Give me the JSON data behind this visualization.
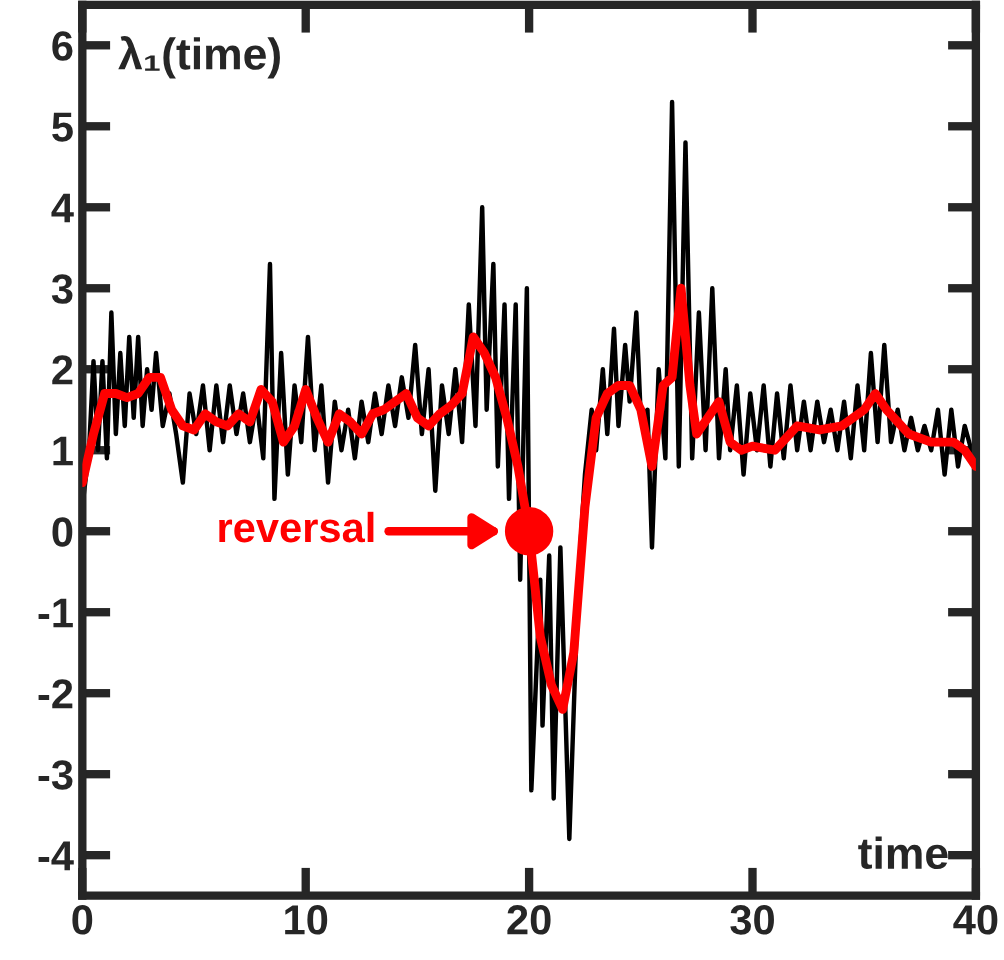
{
  "chart_data": {
    "type": "line",
    "xlabel": "time",
    "ylabel": "λ₁(time)",
    "xlim": [
      0,
      40
    ],
    "xticks": [
      0,
      10,
      20,
      30,
      40
    ],
    "ylim": [
      -4.5,
      6.5
    ],
    "yticks": [
      -4,
      -3,
      -2,
      -1,
      0,
      1,
      2,
      3,
      4,
      5,
      6
    ],
    "grid": false,
    "legend": false,
    "marker": "none",
    "line_style": "solid",
    "series": [
      {
        "color": "#000000",
        "x": [
          0,
          0.3,
          0.5,
          0.7,
          0.9,
          1.1,
          1.3,
          1.5,
          1.7,
          1.9,
          2.1,
          2.3,
          2.5,
          2.7,
          2.9,
          3.1,
          3.3,
          3.6,
          3.9,
          4.2,
          4.5,
          4.8,
          5.1,
          5.4,
          5.7,
          6.0,
          6.3,
          6.6,
          6.9,
          7.2,
          7.5,
          7.8,
          8.1,
          8.4,
          8.6,
          8.9,
          9.2,
          9.5,
          9.8,
          10.1,
          10.4,
          10.7,
          11.0,
          11.3,
          11.6,
          11.9,
          12.2,
          12.5,
          12.8,
          13.1,
          13.4,
          13.7,
          14.0,
          14.3,
          14.6,
          14.9,
          15.2,
          15.5,
          15.8,
          16.1,
          16.4,
          16.7,
          17.0,
          17.3,
          17.6,
          17.9,
          18.1,
          18.4,
          18.6,
          18.9,
          19.1,
          19.4,
          19.6,
          19.9,
          20.1,
          20.5,
          20.6,
          20.9,
          21.1,
          21.4,
          21.8,
          22.2,
          22.5,
          22.8,
          23.0,
          23.3,
          23.5,
          23.8,
          24.0,
          24.3,
          24.5,
          24.8,
          25.0,
          25.3,
          25.5,
          25.8,
          26.1,
          26.4,
          26.7,
          27.0,
          27.3,
          27.6,
          27.9,
          28.2,
          28.5,
          28.8,
          29.0,
          29.3,
          29.6,
          29.9,
          30.2,
          30.5,
          30.8,
          31.1,
          31.4,
          31.7,
          32.0,
          32.3,
          32.6,
          32.9,
          33.2,
          33.5,
          33.8,
          34.1,
          34.4,
          34.7,
          35.0,
          35.3,
          35.6,
          35.9,
          36.2,
          36.5,
          36.8,
          37.1,
          37.4,
          37.7,
          38.0,
          38.3,
          38.6,
          38.9,
          39.2,
          39.5,
          39.8,
          40.0
        ],
        "values": [
          0.3,
          1.0,
          2.1,
          1.0,
          2.1,
          0.9,
          2.7,
          1.2,
          2.2,
          1.3,
          2.4,
          1.4,
          2.4,
          1.3,
          2.0,
          1.5,
          2.2,
          1.3,
          1.7,
          1.2,
          0.6,
          1.7,
          1.2,
          1.8,
          1.0,
          1.8,
          1.1,
          1.8,
          1.2,
          1.7,
          1.1,
          1.6,
          0.9,
          3.3,
          0.4,
          2.2,
          0.7,
          1.8,
          1.1,
          2.4,
          1.0,
          1.8,
          0.6,
          1.6,
          1.0,
          1.5,
          0.9,
          1.6,
          1.1,
          1.7,
          1.2,
          1.8,
          1.3,
          1.9,
          1.4,
          2.3,
          1.2,
          2.0,
          0.5,
          1.8,
          1.2,
          2.0,
          1.1,
          2.8,
          1.3,
          4.0,
          1.5,
          3.3,
          0.8,
          2.8,
          0.4,
          2.8,
          -0.6,
          3.0,
          -3.2,
          -0.6,
          -2.4,
          -0.3,
          -3.3,
          -0.2,
          -3.8,
          -0.6,
          0.7,
          1.5,
          1.0,
          2.0,
          1.2,
          2.5,
          1.3,
          2.3,
          1.6,
          2.7,
          1.4,
          1.5,
          -0.2,
          2.0,
          0.9,
          5.3,
          0.8,
          4.8,
          0.9,
          2.7,
          1.0,
          3.0,
          0.9,
          2.0,
          1.0,
          1.8,
          0.7,
          1.7,
          1.0,
          1.8,
          0.8,
          1.7,
          0.9,
          1.8,
          1.0,
          1.6,
          1.0,
          1.6,
          1.1,
          1.5,
          1.0,
          1.6,
          0.9,
          1.8,
          1.0,
          2.2,
          1.1,
          2.3,
          1.1,
          1.5,
          1.0,
          1.4,
          1.0,
          1.3,
          1.0,
          1.5,
          0.7,
          1.5,
          0.8,
          1.3,
          1.0,
          1.1
        ]
      },
      {
        "color": "#ff0000",
        "x": [
          0,
          0.5,
          1,
          1.5,
          2,
          2.5,
          3,
          3.5,
          4,
          4.5,
          5,
          5.5,
          6,
          6.5,
          7,
          7.5,
          8,
          8.5,
          9,
          9.5,
          10,
          10.5,
          11,
          11.5,
          12,
          12.5,
          13,
          13.5,
          14,
          14.5,
          15,
          15.5,
          16,
          16.5,
          17,
          17.5,
          18,
          18.5,
          19,
          19.5,
          20,
          20.5,
          21,
          21.5,
          22,
          22.5,
          23,
          23.5,
          24,
          24.5,
          25,
          25.5,
          26,
          26.4,
          26.8,
          27.2,
          27.5,
          28,
          28.5,
          29,
          29.5,
          30,
          31,
          32,
          33,
          34,
          35,
          35.5,
          36,
          37,
          38,
          39,
          39.5,
          40
        ],
        "values": [
          0.6,
          1.2,
          1.7,
          1.7,
          1.65,
          1.7,
          1.9,
          1.9,
          1.5,
          1.3,
          1.25,
          1.45,
          1.35,
          1.3,
          1.45,
          1.35,
          1.75,
          1.6,
          1.1,
          1.3,
          1.75,
          1.4,
          1.1,
          1.45,
          1.35,
          1.2,
          1.45,
          1.5,
          1.6,
          1.7,
          1.4,
          1.3,
          1.45,
          1.55,
          1.7,
          2.4,
          2.2,
          1.9,
          1.4,
          0.8,
          0.0,
          -1.3,
          -1.9,
          -2.2,
          -1.5,
          0.3,
          1.4,
          1.7,
          1.8,
          1.8,
          1.5,
          0.8,
          1.8,
          1.9,
          3.0,
          1.8,
          1.2,
          1.4,
          1.6,
          1.1,
          1.0,
          1.05,
          1.0,
          1.3,
          1.25,
          1.3,
          1.5,
          1.7,
          1.5,
          1.2,
          1.1,
          1.1,
          1.0,
          0.8
        ]
      },
      {
        "type": "scatter",
        "color": "#ff0000",
        "marker": "circle",
        "x": [
          20
        ],
        "values": [
          0
        ]
      }
    ],
    "annotations": [
      "reversal"
    ]
  }
}
